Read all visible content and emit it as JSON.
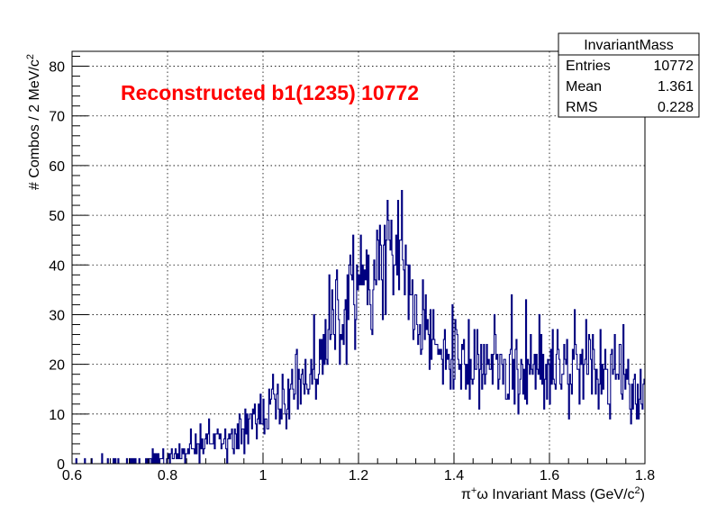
{
  "chart_data": {
    "type": "histogram",
    "annotation": "Reconstructed b1(1235) 10772",
    "xlabel_pre": "π",
    "xlabel_sup": "+",
    "xlabel_mid": "ω Invariant Mass (GeV/c",
    "xlabel_sup2": "2",
    "xlabel_post": ")",
    "ylabel_main": "# Combos / 2 MeV/c",
    "ylabel_sup": "2",
    "xlim": [
      0.6,
      1.8
    ],
    "ylim": [
      0,
      83
    ],
    "x_ticks": [
      "0.6",
      "0.8",
      "1",
      "1.2",
      "1.4",
      "1.6",
      "1.8"
    ],
    "y_ticks": [
      "0",
      "10",
      "20",
      "30",
      "40",
      "50",
      "60",
      "70",
      "80"
    ],
    "grid": true,
    "bin_width": 0.002,
    "line_color": "#000080",
    "envelope_x": [
      0.6,
      0.7,
      0.75,
      0.8,
      0.85,
      0.9,
      0.95,
      1.0,
      1.05,
      1.1,
      1.13,
      1.16,
      1.19,
      1.22,
      1.25,
      1.27,
      1.29,
      1.31,
      1.34,
      1.37,
      1.4,
      1.45,
      1.5,
      1.55,
      1.6,
      1.65,
      1.7,
      1.75,
      1.8
    ],
    "envelope_y": [
      0,
      0.2,
      0.5,
      1.2,
      2.5,
      4.5,
      7,
      10,
      13,
      17,
      23,
      30,
      35,
      38,
      41,
      43,
      42,
      34,
      26,
      22,
      21,
      20,
      19.5,
      19.5,
      19.5,
      19.5,
      19,
      18.5,
      15
    ],
    "peak_bin_x": 1.291,
    "peak_bin_y": 55,
    "stats": {
      "title": "InvariantMass",
      "rows": [
        {
          "label": "Entries",
          "value": "10772"
        },
        {
          "label": "Mean",
          "value": "1.361"
        },
        {
          "label": "RMS",
          "value": "0.228"
        }
      ]
    }
  }
}
